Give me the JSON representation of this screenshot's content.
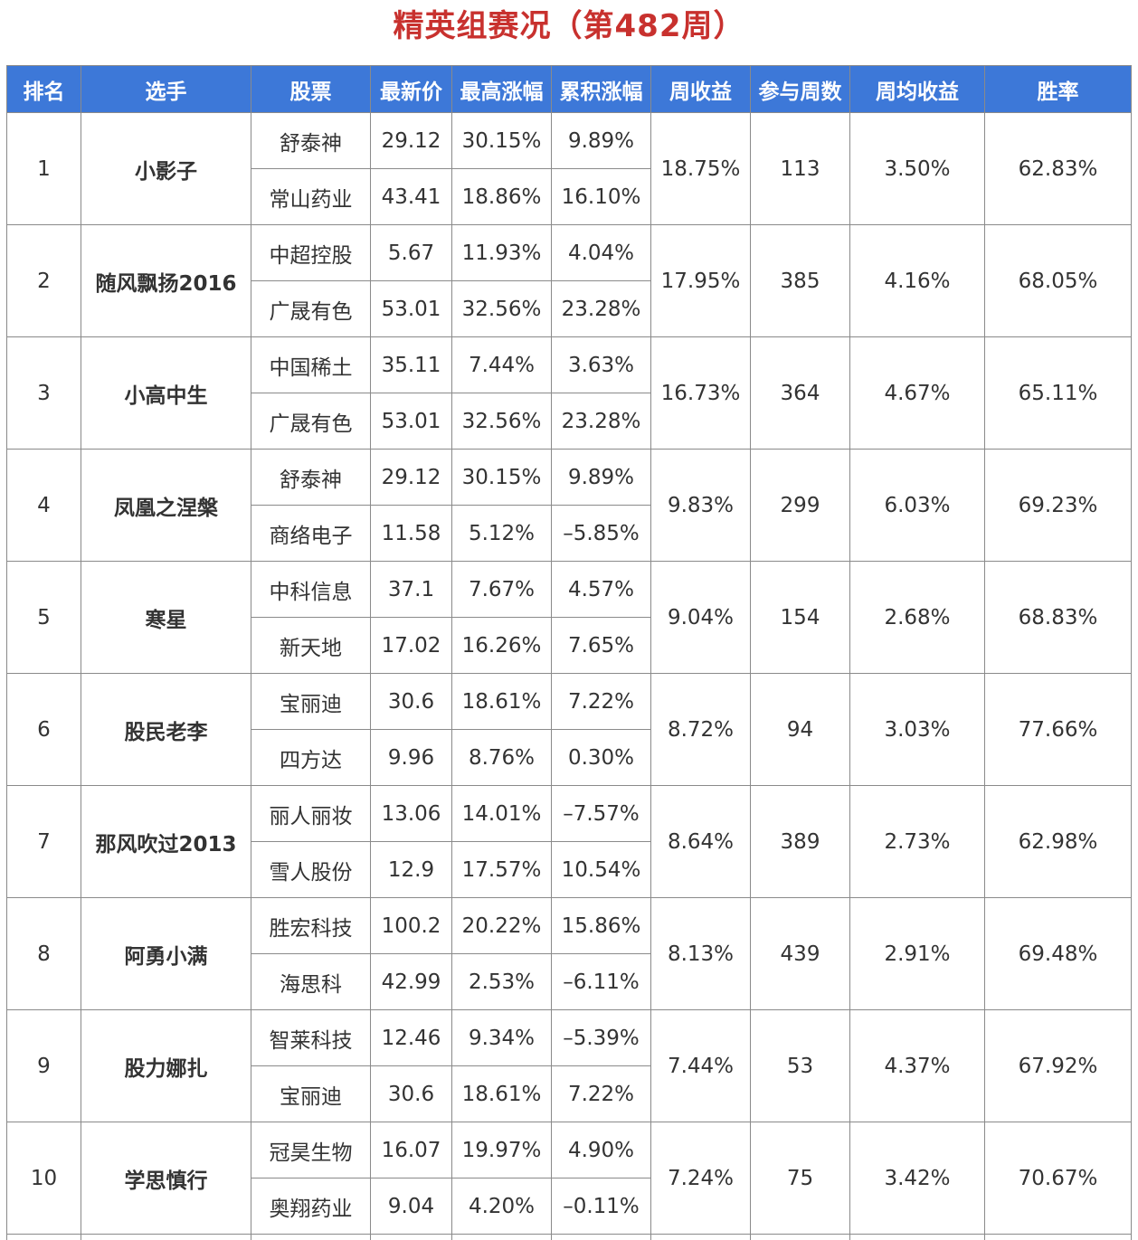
{
  "title": "精英组赛况（第482周）",
  "columns": [
    "排名",
    "选手",
    "股票",
    "最新价",
    "最高涨幅",
    "累积涨幅",
    "周收益",
    "参与周数",
    "周均收益",
    "胜率"
  ],
  "colors": {
    "header_bg": "#3d78d8",
    "positive": "#d9393c",
    "negative": "#3f8a2a",
    "link": "#2f62ad",
    "title": "#c8312e"
  },
  "rows": [
    {
      "rank": "1",
      "player": "小影子",
      "weekly_return": "18.75%",
      "weeks": "113",
      "avg_return": "3.50%",
      "win_rate": "62.83%",
      "stocks": [
        {
          "name": "舒泰神",
          "price": "29.12",
          "max_gain": "30.15%",
          "cum_gain": "9.89%"
        },
        {
          "name": "常山药业",
          "price": "43.41",
          "max_gain": "18.86%",
          "cum_gain": "16.10%"
        }
      ]
    },
    {
      "rank": "2",
      "player": "随风飘扬2016",
      "weekly_return": "17.95%",
      "weeks": "385",
      "avg_return": "4.16%",
      "win_rate": "68.05%",
      "stocks": [
        {
          "name": "中超控股",
          "price": "5.67",
          "max_gain": "11.93%",
          "cum_gain": "4.04%"
        },
        {
          "name": "广晟有色",
          "price": "53.01",
          "max_gain": "32.56%",
          "cum_gain": "23.28%"
        }
      ]
    },
    {
      "rank": "3",
      "player": "小高中生",
      "weekly_return": "16.73%",
      "weeks": "364",
      "avg_return": "4.67%",
      "win_rate": "65.11%",
      "stocks": [
        {
          "name": "中国稀土",
          "price": "35.11",
          "max_gain": "7.44%",
          "cum_gain": "3.63%"
        },
        {
          "name": "广晟有色",
          "price": "53.01",
          "max_gain": "32.56%",
          "cum_gain": "23.28%"
        }
      ]
    },
    {
      "rank": "4",
      "player": "凤凰之涅槃",
      "weekly_return": "9.83%",
      "weeks": "299",
      "avg_return": "6.03%",
      "win_rate": "69.23%",
      "stocks": [
        {
          "name": "舒泰神",
          "price": "29.12",
          "max_gain": "30.15%",
          "cum_gain": "9.89%"
        },
        {
          "name": "商络电子",
          "price": "11.58",
          "max_gain": "5.12%",
          "cum_gain": "–5.85%"
        }
      ]
    },
    {
      "rank": "5",
      "player": "寒星",
      "weekly_return": "9.04%",
      "weeks": "154",
      "avg_return": "2.68%",
      "win_rate": "68.83%",
      "stocks": [
        {
          "name": "中科信息",
          "price": "37.1",
          "max_gain": "7.67%",
          "cum_gain": "4.57%"
        },
        {
          "name": "新天地",
          "price": "17.02",
          "max_gain": "16.26%",
          "cum_gain": "7.65%"
        }
      ]
    },
    {
      "rank": "6",
      "player": "股民老李",
      "weekly_return": "8.72%",
      "weeks": "94",
      "avg_return": "3.03%",
      "win_rate": "77.66%",
      "stocks": [
        {
          "name": "宝丽迪",
          "price": "30.6",
          "max_gain": "18.61%",
          "cum_gain": "7.22%"
        },
        {
          "name": "四方达",
          "price": "9.96",
          "max_gain": "8.76%",
          "cum_gain": "0.30%"
        }
      ]
    },
    {
      "rank": "7",
      "player": "那风吹过2013",
      "weekly_return": "8.64%",
      "weeks": "389",
      "avg_return": "2.73%",
      "win_rate": "62.98%",
      "stocks": [
        {
          "name": "丽人丽妆",
          "price": "13.06",
          "max_gain": "14.01%",
          "cum_gain": "–7.57%"
        },
        {
          "name": "雪人股份",
          "price": "12.9",
          "max_gain": "17.57%",
          "cum_gain": "10.54%"
        }
      ]
    },
    {
      "rank": "8",
      "player": "阿勇小满",
      "weekly_return": "8.13%",
      "weeks": "439",
      "avg_return": "2.91%",
      "win_rate": "69.48%",
      "stocks": [
        {
          "name": "胜宏科技",
          "price": "100.2",
          "max_gain": "20.22%",
          "cum_gain": "15.86%"
        },
        {
          "name": "海思科",
          "price": "42.99",
          "max_gain": "2.53%",
          "cum_gain": "–6.11%"
        }
      ]
    },
    {
      "rank": "9",
      "player": "股力娜扎",
      "weekly_return": "7.44%",
      "weeks": "53",
      "avg_return": "4.37%",
      "win_rate": "67.92%",
      "stocks": [
        {
          "name": "智莱科技",
          "price": "12.46",
          "max_gain": "9.34%",
          "cum_gain": "–5.39%"
        },
        {
          "name": "宝丽迪",
          "price": "30.6",
          "max_gain": "18.61%",
          "cum_gain": "7.22%"
        }
      ]
    },
    {
      "rank": "10",
      "player": "学思慎行",
      "weekly_return": "7.24%",
      "weeks": "75",
      "avg_return": "3.42%",
      "win_rate": "70.67%",
      "stocks": [
        {
          "name": "冠昊生物",
          "price": "16.07",
          "max_gain": "19.97%",
          "cum_gain": "4.90%"
        },
        {
          "name": "奥翔药业",
          "price": "9.04",
          "max_gain": "4.20%",
          "cum_gain": "–0.11%"
        }
      ]
    }
  ]
}
